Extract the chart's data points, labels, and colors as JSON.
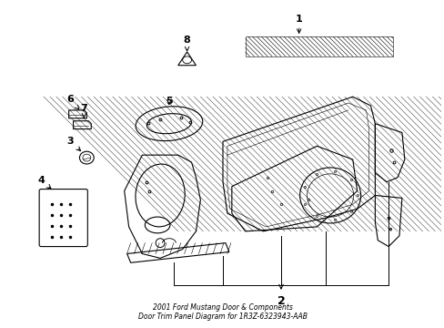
{
  "title": "2001 Ford Mustang Door & Components\nDoor Trim Panel Diagram for 1R3Z-6323943-AAB",
  "background_color": "#ffffff",
  "line_color": "#000000",
  "figsize": [
    4.89,
    3.6
  ],
  "dpi": 100
}
